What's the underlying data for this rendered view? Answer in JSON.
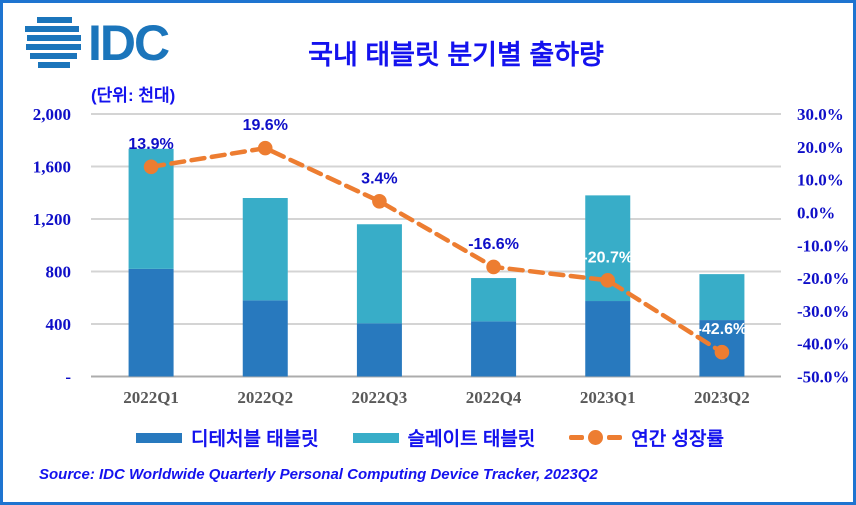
{
  "frame": {
    "border_color": "#1E74D0",
    "background": "#FFFFFF"
  },
  "logo": {
    "text": "IDC",
    "color": "#1B75BB"
  },
  "header": {
    "title": "국내 태블릿 분기별 출하량",
    "unit_label": "(단위: 천대)"
  },
  "source": {
    "text": "Source: IDC Worldwide Quarterly Personal Computing Device Tracker, 2023Q2"
  },
  "legend": {
    "items": [
      {
        "label": "디테처블 태블릿",
        "color": "#2879BE",
        "type": "bar"
      },
      {
        "label": "슬레이트 태블릿",
        "color": "#38ADC8",
        "type": "bar"
      },
      {
        "label": "연간 성장률",
        "color": "#ED7D31",
        "type": "line"
      }
    ]
  },
  "chart_data": {
    "type": "combo_stacked_bar_line",
    "title": "국내 태블릿 분기별 출하량",
    "unit": "천대 (thousands of units)",
    "categories": [
      "2022Q1",
      "2022Q2",
      "2022Q3",
      "2022Q4",
      "2023Q1",
      "2023Q2"
    ],
    "series": [
      {
        "name": "디테처블 태블릿",
        "type": "bar",
        "stack": "total",
        "color": "#2879BE",
        "values": [
          820,
          580,
          405,
          420,
          575,
          430
        ]
      },
      {
        "name": "슬레이트 태블릿",
        "type": "bar",
        "stack": "total",
        "color": "#38ADC8",
        "values": [
          915,
          780,
          755,
          330,
          805,
          350
        ]
      },
      {
        "name": "연간 성장률",
        "type": "line",
        "axis": "right",
        "color": "#ED7D31",
        "values": [
          13.9,
          19.6,
          3.4,
          -16.6,
          -20.7,
          -42.6
        ],
        "point_labels": [
          "13.9%",
          "19.6%",
          "3.4%",
          "-16.6%",
          "-20.7%",
          "-42.6%"
        ],
        "point_label_colors": [
          "#0F0FC8",
          "#0F0FC8",
          "#0F0FC8",
          "#0F0FC8",
          "#FFFFFF",
          "#FFFFFF"
        ]
      }
    ],
    "left_axis": {
      "min": 0,
      "max": 2000,
      "ticks": [
        "2,000",
        "1,600",
        "1,200",
        "800",
        "400",
        "-"
      ],
      "color": "#0F0FC8"
    },
    "right_axis": {
      "min": -50,
      "max": 30,
      "ticks": [
        "30.0%",
        "20.0%",
        "10.0%",
        "0.0%",
        "-10.0%",
        "-20.0%",
        "-30.0%",
        "-40.0%",
        "-50.0%"
      ],
      "color": "#0F0FC8"
    },
    "x_axis": {
      "label_color": "#595959"
    },
    "grid": {
      "on": true,
      "color": "#D4D4D4",
      "baseline_color": "#ACACAC"
    },
    "legend_position": "bottom"
  }
}
